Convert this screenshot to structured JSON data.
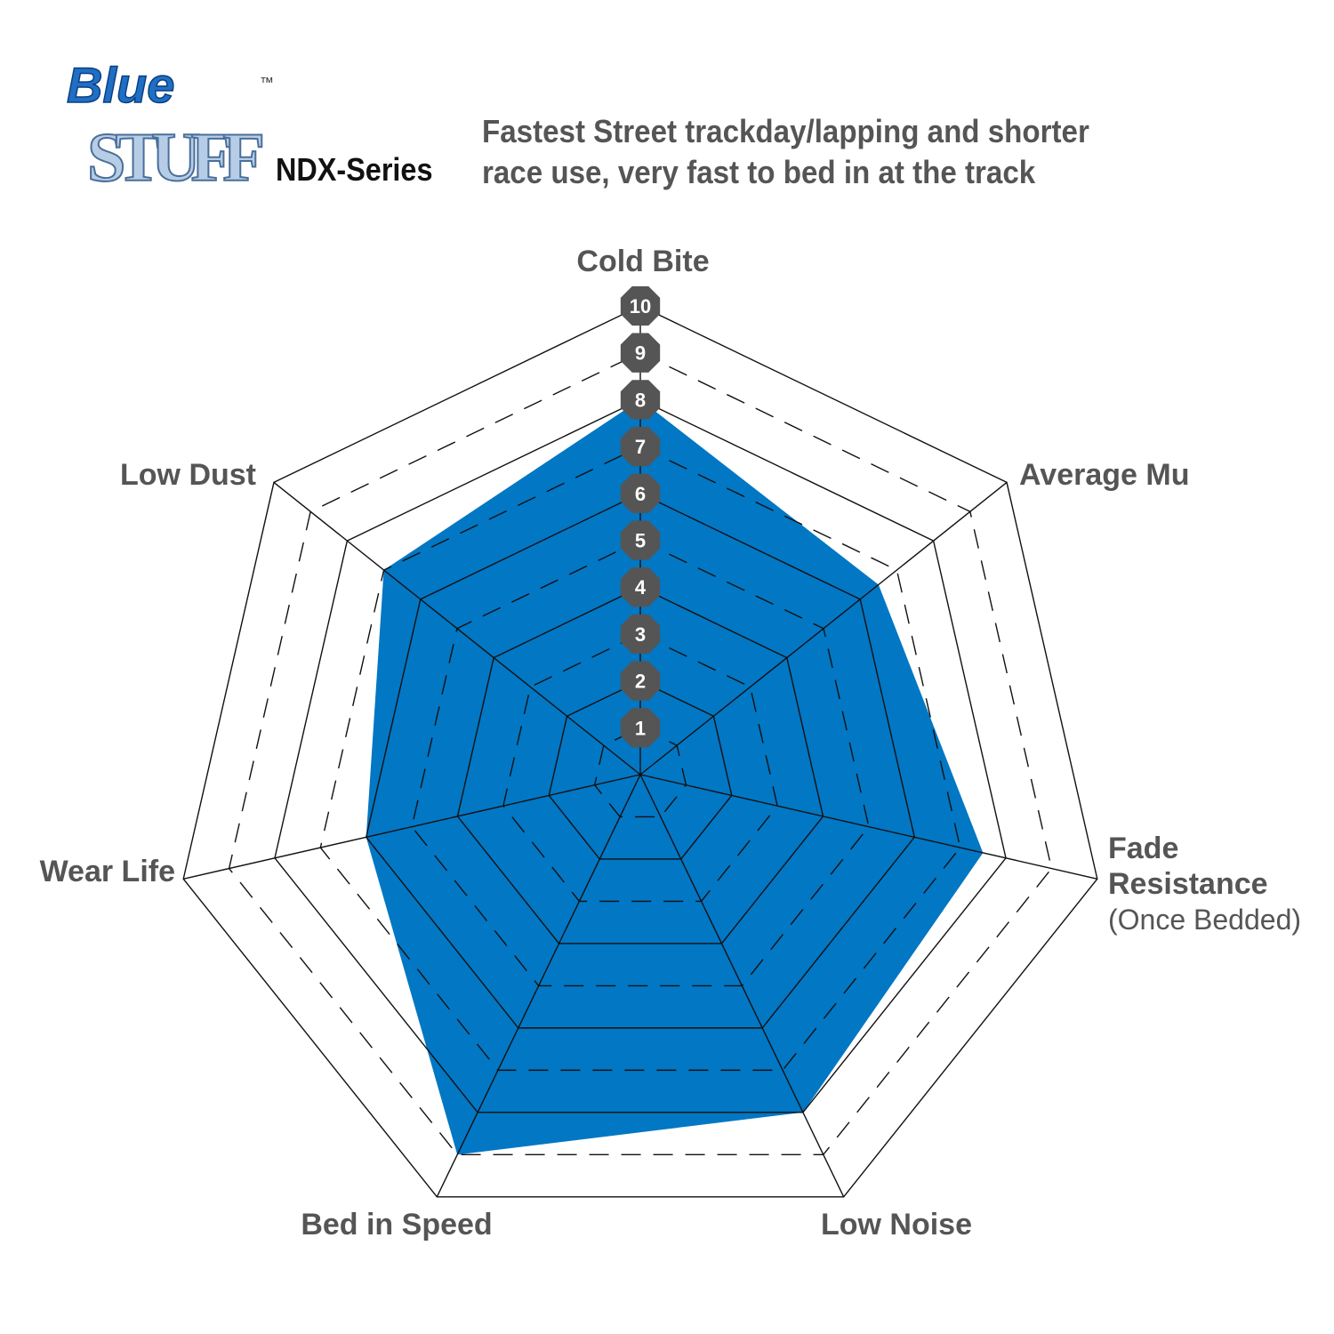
{
  "logo": {
    "line1": "Blue",
    "line2": "STUFF",
    "tm": "™"
  },
  "series_name": "NDX-Series",
  "tagline": [
    "Fastest Street trackday/lapping and shorter",
    "race use, very fast to bed in at the track"
  ],
  "colors": {
    "fill": "#0277c4",
    "badge": "#555555",
    "label": "#555555",
    "logo_blue": "#1f6fc4",
    "logo_light": "#b7cde6"
  },
  "chart_data": {
    "type": "radar",
    "axes": [
      {
        "label": "Cold Bite",
        "value": 8
      },
      {
        "label": "Average Mu",
        "value": 6.5
      },
      {
        "label": "Fade Resistance",
        "sublabel": "(Once Bedded)",
        "value": 7.5
      },
      {
        "label": "Low Noise",
        "value": 8
      },
      {
        "label": "Bed in Speed",
        "value": 9
      },
      {
        "label": "Wear Life",
        "value": 6
      },
      {
        "label": "Low Dust",
        "value": 7
      }
    ],
    "range": [
      0,
      10
    ],
    "ticks": [
      "1",
      "2",
      "3",
      "4",
      "5",
      "6",
      "7",
      "8",
      "9",
      "10"
    ],
    "grid": "solid even rings, dashed odd rings"
  }
}
